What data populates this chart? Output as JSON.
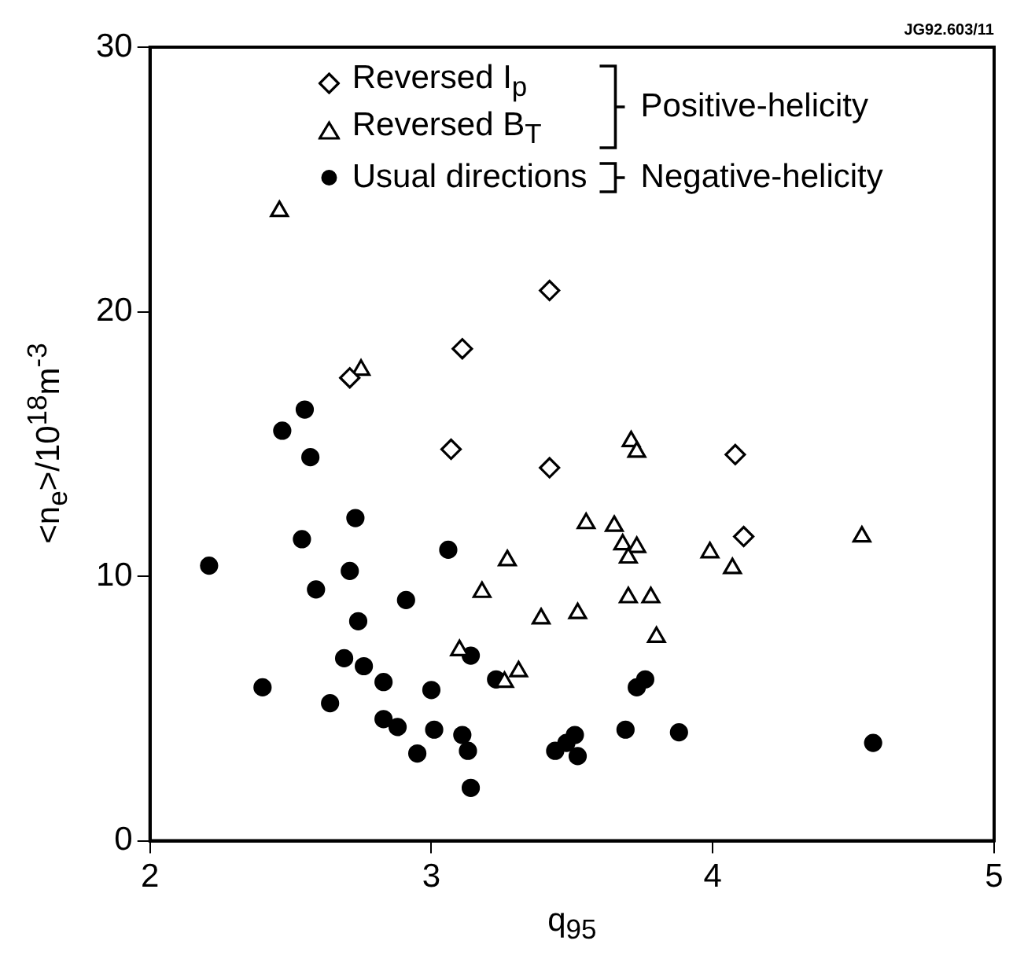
{
  "chart_data": {
    "type": "scatter",
    "xlabel": "q$_{95}$",
    "ylabel": "<n$_{e}$>/10$^{18}$m$^{-3}$",
    "xlim": [
      2,
      5
    ],
    "xticks": [
      2,
      3,
      4,
      5
    ],
    "ylim": [
      0,
      30
    ],
    "yticks": [
      0,
      10,
      20,
      30
    ],
    "legend": "top",
    "annotations": [
      "Positive-helicity",
      "Negative-helicity",
      "JG92.603/11"
    ],
    "series": [
      {
        "name": "Reversed I$_{p}$",
        "color": "#000000",
        "marker": "diamond",
        "x": [
          2.71,
          3.11,
          3.42,
          3.07,
          3.42,
          4.08,
          4.11
        ],
        "values": [
          17.5,
          18.6,
          20.8,
          14.8,
          14.1,
          14.6,
          11.5
        ]
      },
      {
        "name": "Reversed B$_{T}$",
        "color": "#000000",
        "marker": "triangle",
        "x": [
          2.46,
          2.75,
          3.71,
          3.73,
          3.55,
          3.65,
          3.68,
          3.73,
          3.7,
          3.99,
          4.07,
          4.53,
          3.27,
          3.18,
          3.7,
          3.78,
          3.39,
          3.52,
          3.8,
          3.1,
          3.31,
          3.26
        ],
        "values": [
          23.8,
          17.8,
          15.1,
          14.7,
          12.0,
          11.9,
          11.2,
          11.1,
          10.7,
          10.9,
          10.3,
          11.5,
          10.6,
          9.4,
          9.2,
          9.2,
          8.4,
          8.6,
          7.7,
          7.2,
          6.4,
          6.0
        ]
      },
      {
        "name": "Usual directions",
        "color": "#000000",
        "marker": "circle",
        "x": [
          2.47,
          2.55,
          2.57,
          2.21,
          2.54,
          2.73,
          3.06,
          2.71,
          2.59,
          2.91,
          2.74,
          2.69,
          2.76,
          3.14,
          2.4,
          2.64,
          2.83,
          3.0,
          3.23,
          3.73,
          3.76,
          2.83,
          2.88,
          3.01,
          3.11,
          2.95,
          3.13,
          3.14,
          3.51,
          3.44,
          3.48,
          3.52,
          3.69,
          3.88,
          4.57
        ],
        "values": [
          15.5,
          16.3,
          14.5,
          10.4,
          11.4,
          12.2,
          11.0,
          10.2,
          9.5,
          9.1,
          8.3,
          6.9,
          6.6,
          7.0,
          5.8,
          5.2,
          6.0,
          5.7,
          6.1,
          5.8,
          6.1,
          4.6,
          4.3,
          4.2,
          4.0,
          3.3,
          3.4,
          2.0,
          4.0,
          3.4,
          3.7,
          3.2,
          4.2,
          4.1,
          3.7
        ]
      }
    ]
  }
}
